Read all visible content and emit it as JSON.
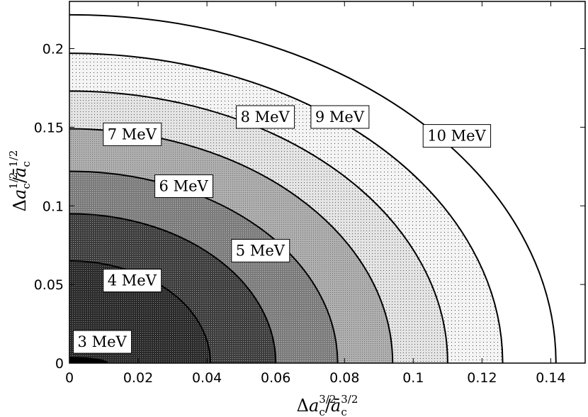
{
  "chart_data": {
    "type": "contour",
    "title": "",
    "xlabel": "Δa_c^{3/2}/ā_c^{3/2}",
    "ylabel": "Δa_c^{1/2}/ā_c^{1/2}",
    "xlim": [
      0,
      0.15
    ],
    "ylim": [
      0,
      0.23
    ],
    "x_ticks": [
      "0",
      "0.02",
      "0.04",
      "0.06",
      "0.08",
      "0.1",
      "0.12",
      "0.14"
    ],
    "y_ticks": [
      "0",
      "0.05",
      "0.1",
      "0.15",
      "0.2"
    ],
    "grid": false,
    "contours": [
      {
        "label": "3 MeV",
        "x_intercept": 0.011,
        "y_intercept": 0.0035,
        "fill": "#000000"
      },
      {
        "label": "4 MeV",
        "x_intercept": 0.041,
        "y_intercept": 0.065,
        "fill": "#1e1e1e"
      },
      {
        "label": "5 MeV",
        "x_intercept": 0.06,
        "y_intercept": 0.095,
        "fill": "#444444"
      },
      {
        "label": "6 MeV",
        "x_intercept": 0.078,
        "y_intercept": 0.122,
        "fill": "#777777"
      },
      {
        "label": "7 MeV",
        "x_intercept": 0.094,
        "y_intercept": 0.149,
        "fill": "#a6a6a6"
      },
      {
        "label": "8 MeV",
        "x_intercept": 0.11,
        "y_intercept": 0.173,
        "fill": "#c6c6c6"
      },
      {
        "label": "9 MeV",
        "x_intercept": 0.126,
        "y_intercept": 0.197,
        "fill": "#e2e2e2"
      },
      {
        "label": "10 MeV",
        "x_intercept": 0.1415,
        "y_intercept": 0.2215,
        "fill": "#ffffff"
      }
    ],
    "contour_label_positions": [
      {
        "label": "3 MeV",
        "x": 0.0095,
        "y": 0.0135
      },
      {
        "label": "4 MeV",
        "x": 0.0182,
        "y": 0.0525
      },
      {
        "label": "5 MeV",
        "x": 0.0555,
        "y": 0.0715
      },
      {
        "label": "6 MeV",
        "x": 0.0332,
        "y": 0.1125
      },
      {
        "label": "7 MeV",
        "x": 0.0182,
        "y": 0.1455
      },
      {
        "label": "8 MeV",
        "x": 0.0569,
        "y": 0.1565
      },
      {
        "label": "9 MeV",
        "x": 0.0786,
        "y": 0.1565
      },
      {
        "label": "10 MeV",
        "x": 0.1126,
        "y": 0.1445
      }
    ]
  }
}
